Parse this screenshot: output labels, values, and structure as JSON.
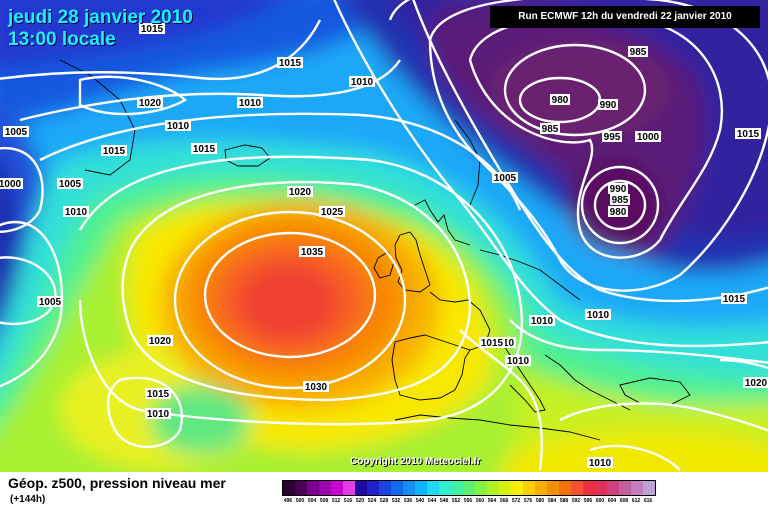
{
  "header": {
    "date": "jeudi 28 janvier 2010",
    "time": "13:00 locale",
    "run": "Run ECMWF 12h du vendredi 22 janvier 2010"
  },
  "copyright": "Copyright 2010 Meteociel.fr",
  "legend": {
    "title": "Géop. z500, pression niveau mer",
    "subtitle": "(+144h)",
    "colors": [
      "#2a0030",
      "#4a0055",
      "#7a0090",
      "#a000b0",
      "#c800d0",
      "#e040e8",
      "#1a0aa0",
      "#2020c8",
      "#1844e0",
      "#1468f0",
      "#1090f8",
      "#10b4fc",
      "#20d8f0",
      "#30f0d0",
      "#40f0a0",
      "#60f070",
      "#88f040",
      "#b0f020",
      "#d8f010",
      "#f8f000",
      "#f8d000",
      "#f8b000",
      "#f89000",
      "#f87000",
      "#f85030",
      "#f03040",
      "#e03060",
      "#d04080",
      "#c060a0",
      "#c080c0",
      "#c0a0d0"
    ],
    "labels": [
      "496",
      "500",
      "504",
      "508",
      "512",
      "516",
      "520",
      "524",
      "528",
      "532",
      "536",
      "540",
      "544",
      "548",
      "552",
      "556",
      "560",
      "564",
      "568",
      "572",
      "576",
      "580",
      "584",
      "588",
      "592",
      "596",
      "600",
      "604",
      "608",
      "612",
      "616"
    ]
  },
  "isobars": [
    {
      "text": "1015"
    },
    {
      "text": "1015"
    },
    {
      "text": "1010"
    },
    {
      "text": "1020"
    },
    {
      "text": "1010"
    },
    {
      "text": "1010"
    },
    {
      "text": "1005"
    },
    {
      "text": "1015"
    },
    {
      "text": "1015"
    },
    {
      "text": "1000"
    },
    {
      "text": "1005"
    },
    {
      "text": "1010"
    },
    {
      "text": "1020"
    },
    {
      "text": "1025"
    },
    {
      "text": "1035"
    },
    {
      "text": "1005"
    },
    {
      "text": "1020"
    },
    {
      "text": "1030"
    },
    {
      "text": "1015"
    },
    {
      "text": "1010"
    },
    {
      "text": "985"
    },
    {
      "text": "980"
    },
    {
      "text": "990"
    },
    {
      "text": "985"
    },
    {
      "text": "995"
    },
    {
      "text": "1000"
    },
    {
      "text": "1005"
    },
    {
      "text": "990"
    },
    {
      "text": "985"
    },
    {
      "text": "980"
    },
    {
      "text": "1015"
    },
    {
      "text": "1015"
    },
    {
      "text": "1010"
    },
    {
      "text": "1015"
    },
    {
      "text": "1010"
    },
    {
      "text": "1010"
    },
    {
      "text": "1010"
    },
    {
      "text": "1020"
    },
    {
      "text": "1010"
    }
  ]
}
